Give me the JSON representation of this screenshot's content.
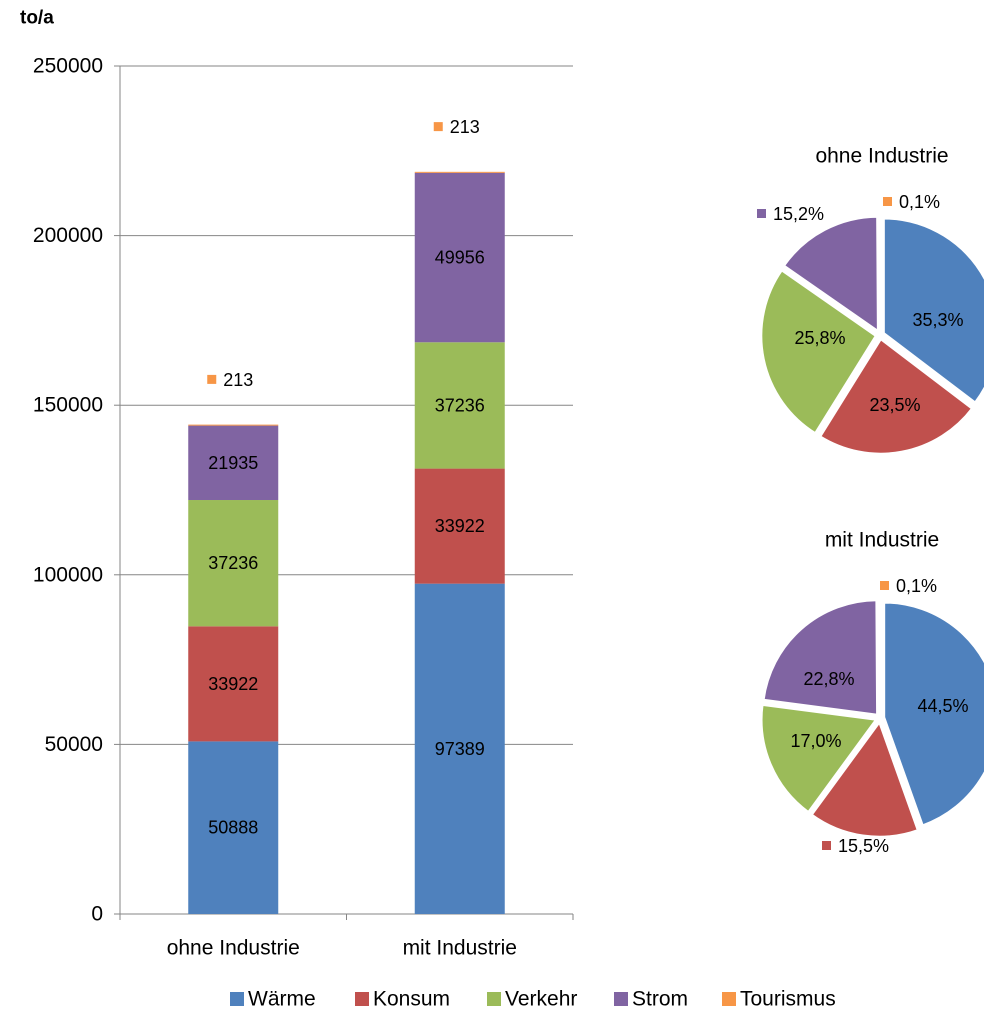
{
  "colors": {
    "warme": "#4F81BD",
    "konsum": "#C0504D",
    "verkehr": "#9BBB59",
    "strom": "#8064A2",
    "tourismus": "#F79646",
    "grid": "#868686"
  },
  "chart_data": [
    {
      "type": "bar",
      "stacked": true,
      "ylabel": "to/a",
      "ylim": [
        0,
        250000
      ],
      "yticks": [
        "0",
        "50000",
        "100000",
        "150000",
        "200000",
        "250000"
      ],
      "ytick_values": [
        0,
        50000,
        100000,
        150000,
        200000,
        250000
      ],
      "grid": true,
      "legend_position": "bottom",
      "categories": [
        "ohne Industrie",
        "mit Industrie"
      ],
      "series": [
        {
          "name": "Wärme",
          "color_key": "warme",
          "values": [
            50888,
            97389
          ],
          "labels": [
            "50888",
            "97389"
          ]
        },
        {
          "name": "Konsum",
          "color_key": "konsum",
          "values": [
            33922,
            33922
          ],
          "labels": [
            "33922",
            "33922"
          ]
        },
        {
          "name": "Verkehr",
          "color_key": "verkehr",
          "values": [
            37236,
            37236
          ],
          "labels": [
            "37236",
            "37236"
          ]
        },
        {
          "name": "Strom",
          "color_key": "strom",
          "values": [
            21935,
            49956
          ],
          "labels": [
            "21935",
            "49956"
          ]
        },
        {
          "name": "Tourismus",
          "color_key": "tourismus",
          "values": [
            213,
            213
          ],
          "labels": [
            "213",
            "213"
          ]
        }
      ]
    },
    {
      "type": "pie",
      "title": "ohne Industrie",
      "slices": [
        {
          "name": "Wärme",
          "color_key": "warme",
          "value": 35.3,
          "label": "35,3%"
        },
        {
          "name": "Konsum",
          "color_key": "konsum",
          "value": 23.5,
          "label": "23,5%"
        },
        {
          "name": "Verkehr",
          "color_key": "verkehr",
          "value": 25.8,
          "label": "25,8%"
        },
        {
          "name": "Strom",
          "color_key": "strom",
          "value": 15.2,
          "label": "15,2%"
        },
        {
          "name": "Tourismus",
          "color_key": "tourismus",
          "value": 0.1,
          "label": "0,1%"
        }
      ]
    },
    {
      "type": "pie",
      "title": "mit Industrie",
      "slices": [
        {
          "name": "Wärme",
          "color_key": "warme",
          "value": 44.5,
          "label": "44,5%"
        },
        {
          "name": "Konsum",
          "color_key": "konsum",
          "value": 15.5,
          "label": "15,5%"
        },
        {
          "name": "Verkehr",
          "color_key": "verkehr",
          "value": 17.0,
          "label": "17,0%"
        },
        {
          "name": "Strom",
          "color_key": "strom",
          "value": 22.8,
          "label": "22,8%"
        },
        {
          "name": "Tourismus",
          "color_key": "tourismus",
          "value": 0.1,
          "label": "0,1%"
        }
      ]
    }
  ],
  "legend": {
    "items": [
      {
        "label": "Wärme",
        "color_key": "warme"
      },
      {
        "label": "Konsum",
        "color_key": "konsum"
      },
      {
        "label": "Verkehr",
        "color_key": "verkehr"
      },
      {
        "label": "Strom",
        "color_key": "strom"
      },
      {
        "label": "Tourismus",
        "color_key": "tourismus"
      }
    ]
  }
}
